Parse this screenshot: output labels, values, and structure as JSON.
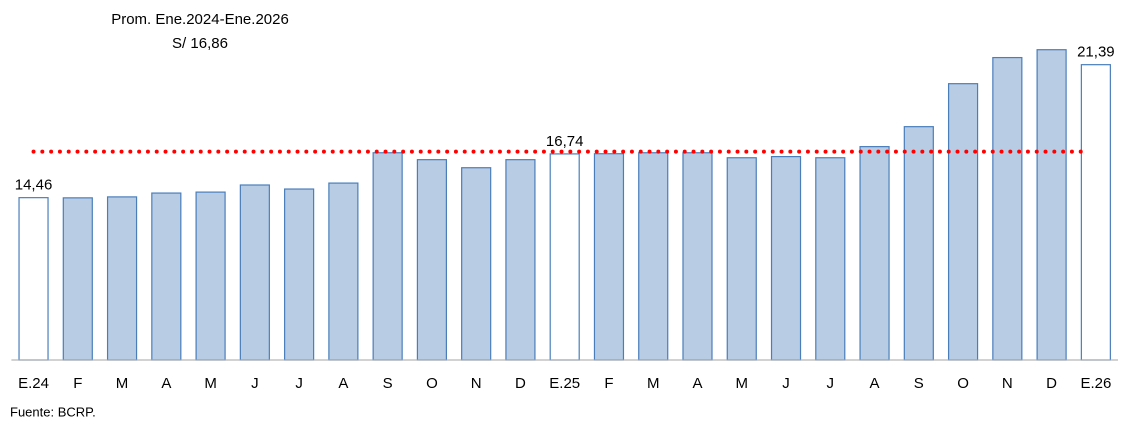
{
  "chart_data": {
    "type": "bar",
    "categories": [
      "E.24",
      "F",
      "M",
      "A",
      "M",
      "J",
      "J",
      "A",
      "S",
      "O",
      "N",
      "D",
      "E.25",
      "F",
      "M",
      "A",
      "M",
      "J",
      "J",
      "A",
      "S",
      "O",
      "N",
      "D",
      "E.26"
    ],
    "values": [
      14.46,
      14.45,
      14.5,
      14.7,
      14.75,
      15.12,
      14.91,
      15.22,
      16.8,
      16.44,
      16.02,
      16.44,
      16.74,
      16.75,
      16.8,
      16.8,
      16.54,
      16.6,
      16.54,
      17.12,
      18.16,
      20.4,
      21.76,
      22.17,
      21.39
    ],
    "value_labels": [
      "14,46",
      null,
      null,
      null,
      null,
      null,
      null,
      null,
      null,
      null,
      null,
      null,
      "16,74",
      null,
      null,
      null,
      null,
      null,
      null,
      null,
      null,
      null,
      null,
      null,
      "21,39"
    ],
    "colors": [
      "#ffffff",
      "#b8cce4",
      "#b8cce4",
      "#b8cce4",
      "#b8cce4",
      "#b8cce4",
      "#b8cce4",
      "#b8cce4",
      "#b8cce4",
      "#b8cce4",
      "#b8cce4",
      "#b8cce4",
      "#ffffff",
      "#b8cce4",
      "#b8cce4",
      "#b8cce4",
      "#b8cce4",
      "#b8cce4",
      "#b8cce4",
      "#b8cce4",
      "#b8cce4",
      "#b8cce4",
      "#b8cce4",
      "#b8cce4",
      "#ffffff"
    ],
    "edge_color": "#4a7ebb",
    "ylim": [
      6,
      24
    ],
    "average_line": {
      "value": 16.86,
      "label": "Prom. Ene.2024-Ene.2026",
      "value_label": "S/ 16,86",
      "color": "#ff0000"
    },
    "source": "Fuente: BCRP."
  }
}
